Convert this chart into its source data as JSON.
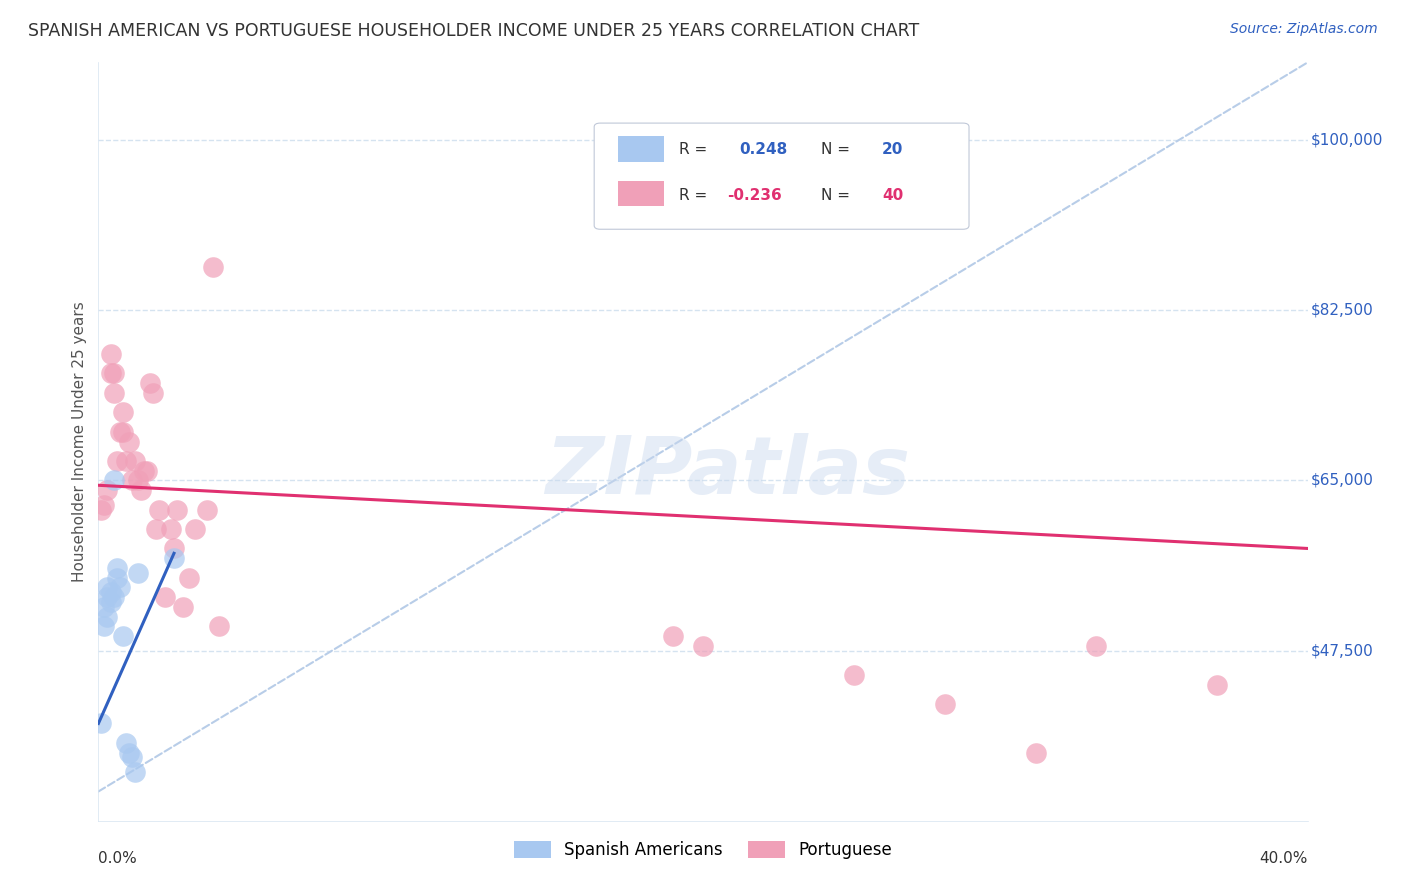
{
  "title": "SPANISH AMERICAN VS PORTUGUESE HOUSEHOLDER INCOME UNDER 25 YEARS CORRELATION CHART",
  "source": "Source: ZipAtlas.com",
  "ylabel": "Householder Income Under 25 years",
  "xlim": [
    0.0,
    0.4
  ],
  "ylim": [
    30000,
    108000
  ],
  "blue_color": "#A8C8F0",
  "blue_line_color": "#3060C0",
  "pink_color": "#F0A0B8",
  "pink_line_color": "#E03070",
  "ref_line_color": "#B8CDE8",
  "background_color": "#FFFFFF",
  "grid_color": "#D5E3F0",
  "watermark": "ZIPatlas",
  "spanish_x": [
    0.001,
    0.002,
    0.002,
    0.003,
    0.003,
    0.003,
    0.004,
    0.004,
    0.005,
    0.005,
    0.006,
    0.006,
    0.007,
    0.008,
    0.009,
    0.01,
    0.011,
    0.012,
    0.013,
    0.025
  ],
  "spanish_y": [
    40000,
    50000,
    52000,
    51000,
    53000,
    54000,
    52500,
    53500,
    65000,
    53000,
    55000,
    56000,
    54000,
    49000,
    38000,
    37000,
    36500,
    35000,
    55500,
    57000
  ],
  "portuguese_x": [
    0.001,
    0.002,
    0.003,
    0.004,
    0.004,
    0.005,
    0.005,
    0.006,
    0.007,
    0.008,
    0.008,
    0.009,
    0.01,
    0.011,
    0.012,
    0.013,
    0.014,
    0.015,
    0.016,
    0.017,
    0.018,
    0.019,
    0.02,
    0.022,
    0.024,
    0.025,
    0.026,
    0.028,
    0.03,
    0.032,
    0.036,
    0.038,
    0.04,
    0.19,
    0.2,
    0.25,
    0.28,
    0.31,
    0.33,
    0.37
  ],
  "portuguese_y": [
    62000,
    62500,
    64000,
    76000,
    78000,
    74000,
    76000,
    67000,
    70000,
    70000,
    72000,
    67000,
    69000,
    65000,
    67000,
    65000,
    64000,
    66000,
    66000,
    75000,
    74000,
    60000,
    62000,
    53000,
    60000,
    58000,
    62000,
    52000,
    55000,
    60000,
    62000,
    87000,
    50000,
    49000,
    48000,
    45000,
    42000,
    37000,
    48000,
    44000
  ],
  "ytick_vals": [
    47500,
    65000,
    82500,
    100000
  ],
  "ytick_labels": [
    "$47,500",
    "$65,000",
    "$82,500",
    "$100,000"
  ]
}
